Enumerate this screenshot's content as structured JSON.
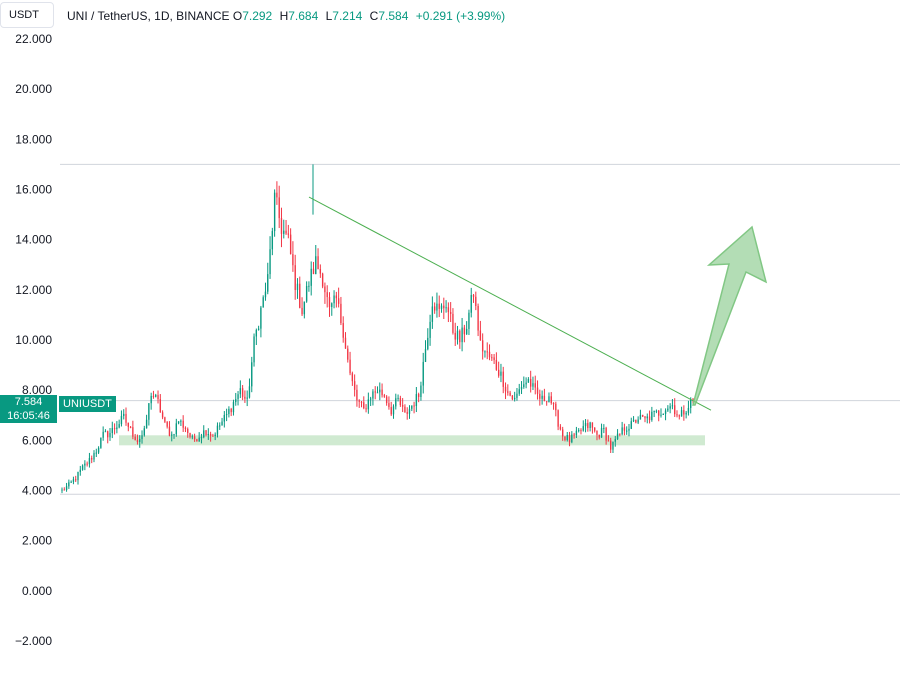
{
  "header": {
    "currency": "USDT",
    "symbol_title": "UNI / TetherUS, 1D, BINANCE",
    "ohlc": [
      {
        "k": "O",
        "v": "7.292"
      },
      {
        "k": "H",
        "v": "7.684"
      },
      {
        "k": "L",
        "v": "7.214"
      },
      {
        "k": "C",
        "v": "7.584"
      }
    ],
    "change": "+0.291 (+3.99%)"
  },
  "price_tag": {
    "price": "7.584",
    "countdown": "16:05:46",
    "symbol": "UNIUSDT"
  },
  "colors": {
    "up": "#089981",
    "down": "#f23645",
    "trendline": "#4caf50",
    "support_zone": "#c8e6c9",
    "arrow": "#81c784"
  },
  "chart_data": {
    "type": "candlestick",
    "y_ticks": [
      "22.000",
      "20.000",
      "18.000",
      "16.000",
      "14.000",
      "12.000",
      "10.000",
      "8.000",
      "6.000",
      "4.000",
      "2.000",
      "0.000",
      "−2.000"
    ],
    "ylim": [
      -2.4,
      22.4
    ],
    "horizontal_lines": [
      17.0,
      7.584,
      3.85
    ],
    "support_zone": {
      "low": 5.8,
      "high": 6.2
    },
    "trendline": {
      "start_price": 15.7,
      "end_price": 7.2
    },
    "projection_arrow": "up",
    "price_path": [
      4.0,
      4.2,
      4.5,
      4.9,
      5.2,
      5.6,
      6.2,
      6.3,
      6.6,
      6.9,
      6.4,
      6.0,
      6.3,
      7.9,
      7.5,
      6.6,
      6.2,
      6.8,
      6.5,
      6.0,
      6.2,
      6.4,
      6.2,
      6.6,
      7.0,
      7.5,
      8.0,
      7.5,
      9.9,
      11.2,
      12.4,
      15.6,
      14.5,
      13.9,
      12.3,
      11.2,
      12.3,
      13.1,
      12.5,
      11.1,
      11.6,
      10.4,
      8.6,
      7.6,
      7.2,
      7.8,
      8.0,
      7.8,
      7.2,
      7.6,
      7.0,
      7.4,
      7.8,
      9.7,
      11.6,
      11.1,
      11.5,
      10.4,
      10.0,
      10.6,
      11.9,
      9.8,
      9.4,
      9.1,
      8.6,
      7.9,
      7.6,
      8.2,
      8.4,
      7.9,
      7.6,
      7.8,
      7.0,
      6.2,
      6.0,
      6.2,
      6.5,
      6.6,
      6.2,
      6.4,
      5.7,
      6.1,
      6.5,
      6.6,
      6.9,
      6.8,
      7.0,
      7.1,
      7.3,
      7.4,
      6.9,
      7.3,
      7.6
    ]
  }
}
